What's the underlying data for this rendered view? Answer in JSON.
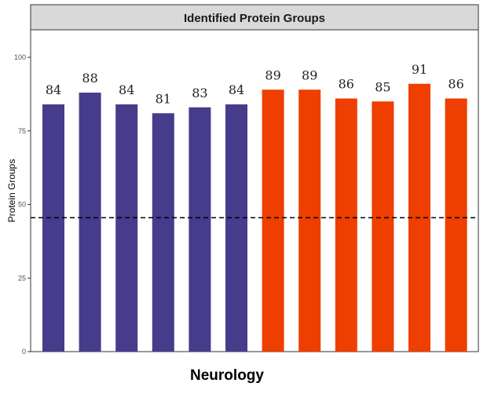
{
  "chart_data": {
    "type": "bar",
    "title": "Identified Protein Groups",
    "xlabel": "Neurology",
    "ylabel": "Protein Groups",
    "ylim": [
      0,
      110
    ],
    "yticks": [
      0,
      25,
      50,
      75,
      100
    ],
    "values": [
      84,
      88,
      84,
      81,
      83,
      84,
      89,
      89,
      86,
      85,
      91,
      86
    ],
    "labels": [
      "84",
      "88",
      "84",
      "81",
      "83",
      "84",
      "89",
      "89",
      "86",
      "85",
      "91",
      "86"
    ],
    "groups": [
      {
        "color": "#463C8B",
        "count": 6
      },
      {
        "color": "#EE3F00",
        "count": 6
      }
    ],
    "reference_line": {
      "value": 45.5,
      "style": "dashed",
      "color": "#000000"
    },
    "grid": false,
    "legend": "none"
  }
}
